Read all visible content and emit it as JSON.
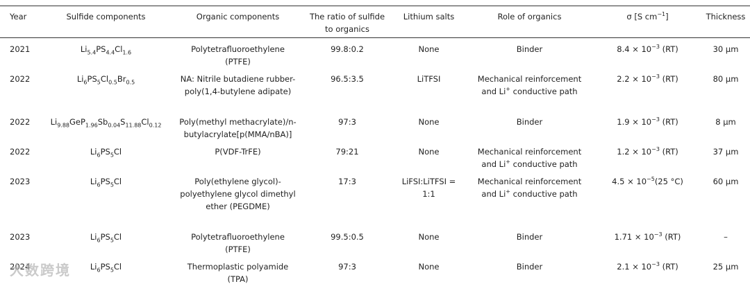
{
  "table": {
    "header": [
      "Year",
      "Sulfide components",
      "Organic components",
      "The ratio of sulfide to organics",
      "Lithium salts",
      "Role of organics",
      [
        "σ [S cm",
        "−1",
        "]"
      ],
      "Thickness"
    ],
    "rows": [
      [
        "2021",
        [
          "Li",
          "5.4",
          "PS",
          "4.4",
          "Cl",
          "1.6"
        ],
        "Polytetrafluoroethylene (PTFE)",
        "99.8:0.2",
        "None",
        "Binder",
        [
          "8.4 × 10",
          "−3",
          " (RT)"
        ],
        "30 μm"
      ],
      [
        "2022",
        [
          "Li",
          "6",
          "PS",
          "5",
          "Cl",
          "0.5",
          "Br",
          "0.5"
        ],
        "NA: Nitrile butadiene rubber-poly(1,4-butylene adipate)",
        "96.5:3.5",
        "LiTFSI",
        [
          "Mechanical reinforcement and Li",
          "+",
          " conductive path"
        ],
        [
          "2.2 × 10",
          "−3",
          " (RT)"
        ],
        "80 μm"
      ],
      [
        "2022",
        [
          "Li",
          "9.88",
          "GeP",
          "1.96",
          "Sb",
          "0.04",
          "S",
          "11.88",
          "Cl",
          "0.12"
        ],
        "Poly(methyl methacrylate)/n-butylacrylate[p(MMA/nBA)]",
        "97:3",
        "None",
        "Binder",
        [
          "1.9 × 10",
          "−3",
          " (RT)"
        ],
        "8 μm"
      ],
      [
        "2022",
        [
          "Li",
          "6",
          "PS",
          "5",
          "Cl"
        ],
        "P(VDF-TrFE)",
        "79:21",
        "None",
        [
          "Mechanical reinforcement and Li",
          "+",
          " conductive path"
        ],
        [
          "1.2 × 10",
          "−3",
          " (RT)"
        ],
        "37 μm"
      ],
      [
        "2023",
        [
          "Li",
          "6",
          "PS",
          "5",
          "Cl"
        ],
        "Poly(ethylene glycol)-polyethylene glycol dimethyl ether (PEGDME)",
        "17:3",
        "LiFSI:LiTFSI = 1:1",
        [
          "Mechanical reinforcement and Li",
          "+",
          " conductive path"
        ],
        [
          "4.5 × 10",
          "−5",
          "(25 °C)"
        ],
        "60 μm"
      ],
      [
        "2023",
        [
          "Li",
          "6",
          "PS",
          "5",
          "Cl"
        ],
        "Polytetrafluoroethylene (PTFE)",
        "99.5:0.5",
        "None",
        "Binder",
        [
          "1.71 × 10",
          "−3",
          " (RT)"
        ],
        "–"
      ],
      [
        "2024",
        [
          "Li",
          "6",
          "PS",
          "5",
          "Cl"
        ],
        "Thermoplastic polyamide (TPA)",
        "97:3",
        "None",
        "Binder",
        [
          "2.1 × 10",
          "−3",
          " (RT)"
        ],
        "25 μm"
      ]
    ]
  },
  "watermark": "大数跨境"
}
